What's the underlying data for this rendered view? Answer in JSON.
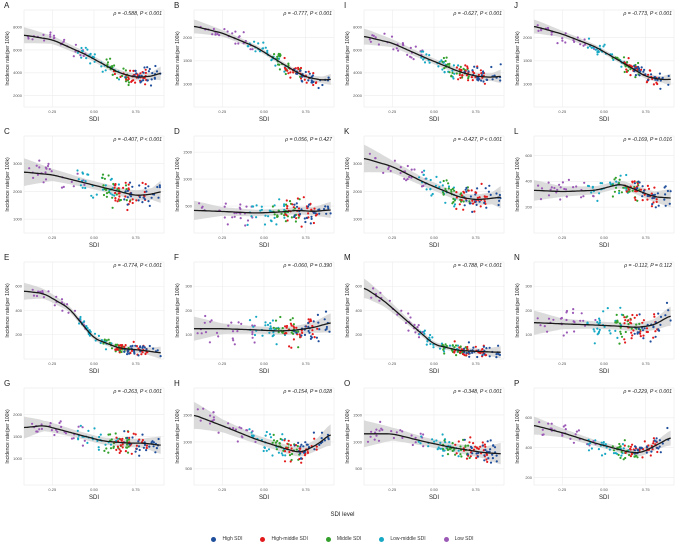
{
  "chart_data": {
    "type": "scatter",
    "panel_grid": "4x4",
    "smoother": "loess with 95% confidence band",
    "x_label": "SDI",
    "x_ticks": [
      "0.25",
      "0.50",
      "0.75"
    ],
    "x_range": [
      0.08,
      0.92
    ],
    "y_label": "Incidence rate(per 100k)",
    "legend": {
      "title": "SDI level",
      "position": "bottom",
      "entries": [
        {
          "name": "High SDI",
          "color": "#1f4e9c"
        },
        {
          "name": "High-middle SDI",
          "color": "#e31a1c"
        },
        {
          "name": "Middle SDI",
          "color": "#33a02c"
        },
        {
          "name": "Low-middle SDI",
          "color": "#17a8c4"
        },
        {
          "name": "Low SDI",
          "color": "#9b59b6"
        }
      ]
    },
    "panels": [
      {
        "label": "A",
        "stat": "ρ = -0.588, P < 0.001",
        "y_ticks": [
          "8000",
          "6000",
          "4000",
          "2000"
        ],
        "ylim": [
          1000,
          9500
        ],
        "trend": [
          [
            0.08,
            7300
          ],
          [
            0.25,
            6900
          ],
          [
            0.45,
            5600
          ],
          [
            0.65,
            4000
          ],
          [
            0.75,
            3600
          ],
          [
            0.85,
            3700
          ],
          [
            0.9,
            4000
          ]
        ],
        "band": [
          700,
          350,
          250,
          250,
          300,
          350,
          600
        ],
        "spread": 1200
      },
      {
        "label": "B",
        "stat": "ρ = -0.777, P < 0.001",
        "y_ticks": [
          "2000",
          "1500",
          "1000"
        ],
        "ylim": [
          500,
          2600
        ],
        "trend": [
          [
            0.08,
            2250
          ],
          [
            0.25,
            2100
          ],
          [
            0.45,
            1800
          ],
          [
            0.65,
            1350
          ],
          [
            0.75,
            1150
          ],
          [
            0.85,
            1080
          ],
          [
            0.9,
            1100
          ]
        ],
        "band": [
          150,
          70,
          50,
          50,
          60,
          70,
          120
        ],
        "spread": 260
      },
      {
        "label": "I",
        "stat": "ρ = -0.627, P < 0.001",
        "y_ticks": [
          "8000",
          "6000",
          "4000",
          "2000"
        ],
        "ylim": [
          1000,
          9500
        ],
        "trend": [
          [
            0.08,
            7200
          ],
          [
            0.25,
            6600
          ],
          [
            0.45,
            5300
          ],
          [
            0.65,
            4100
          ],
          [
            0.75,
            3700
          ],
          [
            0.85,
            3600
          ],
          [
            0.9,
            3700
          ]
        ],
        "band": [
          700,
          350,
          250,
          250,
          300,
          350,
          600
        ],
        "spread": 1300
      },
      {
        "label": "J",
        "stat": "ρ = -0.773, P < 0.001",
        "y_ticks": [
          "2000",
          "1500",
          "1000"
        ],
        "ylim": [
          500,
          2600
        ],
        "trend": [
          [
            0.08,
            2250
          ],
          [
            0.25,
            2080
          ],
          [
            0.45,
            1800
          ],
          [
            0.65,
            1380
          ],
          [
            0.75,
            1160
          ],
          [
            0.85,
            1090
          ],
          [
            0.9,
            1100
          ]
        ],
        "band": [
          150,
          70,
          50,
          50,
          60,
          70,
          120
        ],
        "spread": 260
      },
      {
        "label": "C",
        "stat": "ρ = -0.407, P < 0.001",
        "y_ticks": [
          "3000",
          "2000",
          "1000"
        ],
        "ylim": [
          500,
          4000
        ],
        "trend": [
          [
            0.08,
            2700
          ],
          [
            0.25,
            2600
          ],
          [
            0.45,
            2300
          ],
          [
            0.65,
            2000
          ],
          [
            0.75,
            1850
          ],
          [
            0.85,
            1900
          ],
          [
            0.9,
            2000
          ]
        ],
        "band": [
          500,
          220,
          150,
          150,
          180,
          220,
          400
        ],
        "spread": 800
      },
      {
        "label": "D",
        "stat": "ρ = 0.056, P = 0.427",
        "y_ticks": [
          "1500",
          "1000",
          "500"
        ],
        "ylim": [
          0,
          1800
        ],
        "trend": [
          [
            0.08,
            420
          ],
          [
            0.25,
            400
          ],
          [
            0.45,
            370
          ],
          [
            0.6,
            390
          ],
          [
            0.7,
            420
          ],
          [
            0.8,
            400
          ],
          [
            0.9,
            430
          ]
        ],
        "band": [
          180,
          80,
          60,
          60,
          70,
          80,
          150
        ],
        "spread": 350
      },
      {
        "label": "K",
        "stat": "ρ = -0.427, P < 0.001",
        "y_ticks": [
          "3000",
          "2000",
          "1000"
        ],
        "ylim": [
          500,
          4000
        ],
        "trend": [
          [
            0.08,
            3200
          ],
          [
            0.25,
            2900
          ],
          [
            0.45,
            2300
          ],
          [
            0.65,
            1800
          ],
          [
            0.75,
            1700
          ],
          [
            0.85,
            1750
          ],
          [
            0.9,
            1800
          ]
        ],
        "band": [
          500,
          220,
          150,
          150,
          180,
          220,
          400
        ],
        "spread": 700
      },
      {
        "label": "L",
        "stat": "ρ = -0.169, P = 0.016",
        "y_ticks": [
          "600",
          "400",
          "200"
        ],
        "ylim": [
          0,
          750
        ],
        "trend": [
          [
            0.08,
            330
          ],
          [
            0.25,
            320
          ],
          [
            0.45,
            330
          ],
          [
            0.6,
            380
          ],
          [
            0.7,
            330
          ],
          [
            0.8,
            280
          ],
          [
            0.9,
            270
          ]
        ],
        "band": [
          80,
          40,
          30,
          30,
          35,
          40,
          70
        ],
        "spread": 130
      },
      {
        "label": "E",
        "stat": "ρ = -0.774, P < 0.001",
        "y_ticks": [
          "600",
          "400",
          "200"
        ],
        "ylim": [
          0,
          800
        ],
        "trend": [
          [
            0.08,
            560
          ],
          [
            0.2,
            540
          ],
          [
            0.35,
            420
          ],
          [
            0.5,
            170
          ],
          [
            0.65,
            90
          ],
          [
            0.8,
            70
          ],
          [
            0.9,
            50
          ]
        ],
        "band": [
          70,
          40,
          25,
          20,
          20,
          25,
          50
        ],
        "spread": 80
      },
      {
        "label": "F",
        "stat": "ρ = -0.060, P = 0.390",
        "y_ticks": [
          "300",
          "200",
          "100"
        ],
        "ylim": [
          0,
          400
        ],
        "trend": [
          [
            0.08,
            125
          ],
          [
            0.25,
            125
          ],
          [
            0.45,
            120
          ],
          [
            0.6,
            115
          ],
          [
            0.7,
            120
          ],
          [
            0.8,
            130
          ],
          [
            0.9,
            150
          ]
        ],
        "band": [
          50,
          22,
          15,
          15,
          18,
          22,
          40
        ],
        "spread": 90
      },
      {
        "label": "M",
        "stat": "ρ = -0.788, P < 0.001",
        "y_ticks": [
          "600",
          "400",
          "200"
        ],
        "ylim": [
          0,
          800
        ],
        "trend": [
          [
            0.08,
            590
          ],
          [
            0.2,
            480
          ],
          [
            0.35,
            300
          ],
          [
            0.5,
            120
          ],
          [
            0.65,
            70
          ],
          [
            0.8,
            60
          ],
          [
            0.9,
            55
          ]
        ],
        "band": [
          80,
          45,
          25,
          20,
          20,
          25,
          50
        ],
        "spread": 90
      },
      {
        "label": "N",
        "stat": "ρ = -0.112, P = 0.112",
        "y_ticks": [
          "300",
          "200",
          "100"
        ],
        "ylim": [
          0,
          400
        ],
        "trend": [
          [
            0.08,
            150
          ],
          [
            0.25,
            145
          ],
          [
            0.45,
            140
          ],
          [
            0.6,
            135
          ],
          [
            0.7,
            130
          ],
          [
            0.8,
            140
          ],
          [
            0.9,
            180
          ]
        ],
        "band": [
          50,
          22,
          15,
          15,
          18,
          22,
          40
        ],
        "spread": 90
      },
      {
        "label": "G",
        "stat": "ρ = -0.263, P < 0.001",
        "y_ticks": [
          "2000",
          "1500",
          "1000"
        ],
        "ylim": [
          400,
          2600
        ],
        "trend": [
          [
            0.08,
            1700
          ],
          [
            0.2,
            1750
          ],
          [
            0.4,
            1550
          ],
          [
            0.55,
            1400
          ],
          [
            0.7,
            1350
          ],
          [
            0.8,
            1350
          ],
          [
            0.9,
            1300
          ]
        ],
        "band": [
          250,
          120,
          80,
          80,
          90,
          110,
          200
        ],
        "spread": 380
      },
      {
        "label": "H",
        "stat": "ρ = -0.154, P = 0.028",
        "y_ticks": [
          "1500",
          "1000",
          "500"
        ],
        "ylim": [
          200,
          2000
        ],
        "trend": [
          [
            0.08,
            1500
          ],
          [
            0.25,
            1300
          ],
          [
            0.45,
            1050
          ],
          [
            0.65,
            850
          ],
          [
            0.72,
            800
          ],
          [
            0.82,
            950
          ],
          [
            0.9,
            1150
          ]
        ],
        "band": [
          250,
          120,
          80,
          80,
          90,
          110,
          200
        ],
        "spread": 300
      },
      {
        "label": "O",
        "stat": "ρ = -0.348, P < 0.001",
        "y_ticks": [
          "1500",
          "1000",
          "500"
        ],
        "ylim": [
          200,
          2000
        ],
        "trend": [
          [
            0.08,
            1150
          ],
          [
            0.25,
            1150
          ],
          [
            0.45,
            1000
          ],
          [
            0.6,
            900
          ],
          [
            0.7,
            850
          ],
          [
            0.8,
            800
          ],
          [
            0.9,
            780
          ]
        ],
        "band": [
          250,
          120,
          80,
          80,
          90,
          110,
          200
        ],
        "spread": 300
      },
      {
        "label": "P",
        "stat": "ρ = -0.229, P < 0.001",
        "y_ticks": [
          "600",
          "400",
          "200"
        ],
        "ylim": [
          150,
          800
        ],
        "trend": [
          [
            0.08,
            550
          ],
          [
            0.25,
            500
          ],
          [
            0.45,
            430
          ],
          [
            0.65,
            370
          ],
          [
            0.72,
            365
          ],
          [
            0.82,
            420
          ],
          [
            0.9,
            470
          ]
        ],
        "band": [
          60,
          30,
          20,
          20,
          25,
          30,
          50
        ],
        "spread": 100
      }
    ]
  }
}
